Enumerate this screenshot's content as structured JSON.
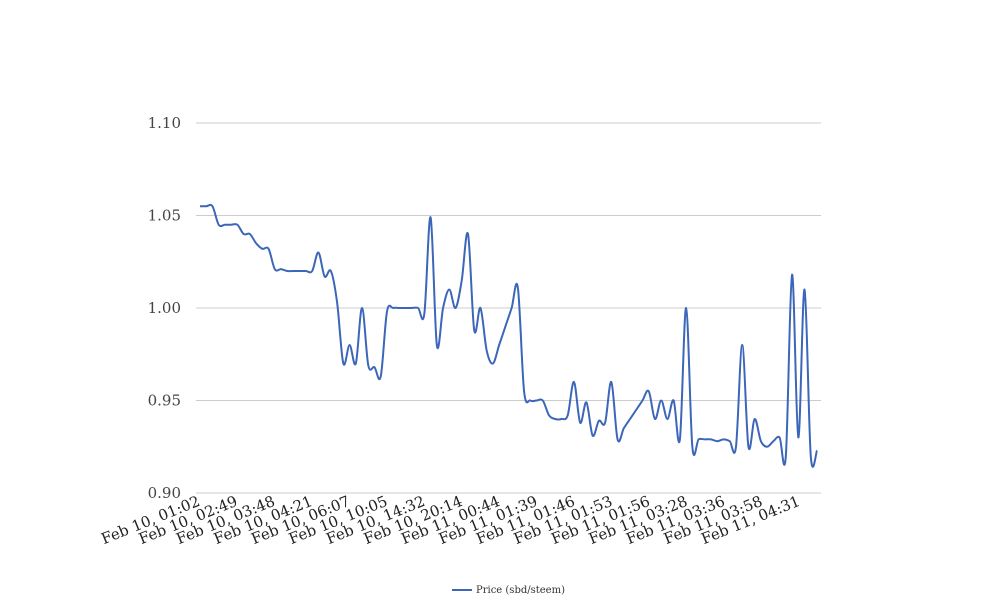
{
  "chart_data": {
    "type": "line",
    "title": "",
    "xlabel": "",
    "ylabel": "",
    "ylim": [
      0.9,
      1.1
    ],
    "yticks": [
      "0.90",
      "0.95",
      "1.00",
      "1.05",
      "1.10"
    ],
    "grid": true,
    "legend_position": "bottom",
    "line_color": "#3c66b8",
    "xtick_labels": [
      "Feb 10, 01:02",
      "Feb 10, 02:49",
      "Feb 10, 03:48",
      "Feb 10, 04:21",
      "Feb 10, 06:07",
      "Feb 10, 10:05",
      "Feb 10, 14:32",
      "Feb 10, 20:14",
      "Feb 11, 00:44",
      "Feb 11, 01:39",
      "Feb 11, 01:46",
      "Feb 11, 01:53",
      "Feb 11, 01:56",
      "Feb 11, 03:28",
      "Feb 11, 03:36",
      "Feb 11, 03:58",
      "Feb 11, 04:31"
    ],
    "series": [
      {
        "name": "Price (sbd/steem)",
        "values": [
          1.055,
          1.055,
          1.055,
          1.045,
          1.045,
          1.045,
          1.045,
          1.04,
          1.04,
          1.035,
          1.032,
          1.032,
          1.021,
          1.021,
          1.02,
          1.02,
          1.02,
          1.02,
          1.02,
          1.03,
          1.017,
          1.02,
          1.003,
          0.97,
          0.98,
          0.97,
          1.0,
          0.969,
          0.968,
          0.963,
          0.998,
          1.0,
          1.0,
          1.0,
          1.0,
          1.0,
          0.997,
          1.049,
          0.98,
          1.0,
          1.01,
          1.0,
          1.015,
          1.04,
          0.988,
          1.0,
          0.977,
          0.97,
          0.98,
          0.99,
          1.0,
          1.011,
          0.955,
          0.95,
          0.95,
          0.95,
          0.942,
          0.94,
          0.94,
          0.942,
          0.96,
          0.938,
          0.949,
          0.931,
          0.939,
          0.938,
          0.96,
          0.929,
          0.935,
          0.94,
          0.945,
          0.95,
          0.955,
          0.94,
          0.95,
          0.94,
          0.95,
          0.929,
          1.0,
          0.925,
          0.929,
          0.929,
          0.929,
          0.928,
          0.929,
          0.928,
          0.925,
          0.98,
          0.925,
          0.94,
          0.928,
          0.925,
          0.928,
          0.93,
          0.92,
          1.018,
          0.93,
          1.01,
          0.92,
          0.923
        ]
      }
    ]
  }
}
